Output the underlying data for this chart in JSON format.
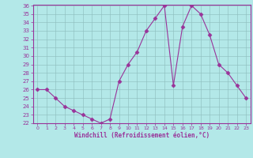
{
  "x": [
    0,
    1,
    2,
    3,
    4,
    5,
    6,
    7,
    8,
    9,
    10,
    11,
    12,
    13,
    14,
    15,
    16,
    17,
    18,
    19,
    20,
    21,
    22,
    23
  ],
  "y": [
    26,
    26,
    25,
    24,
    23.5,
    23,
    22.5,
    22,
    22.5,
    27,
    29,
    30.5,
    33,
    34.5,
    36,
    26.5,
    33.5,
    36,
    35,
    32.5,
    29,
    28,
    26.5,
    25
  ],
  "line_color": "#993399",
  "marker": "D",
  "marker_size": 2.5,
  "bg_color": "#b3e8e8",
  "grid_color": "#8fbfbf",
  "xlabel": "Windchill (Refroidissement éolien,°C)",
  "ylabel": "",
  "ylim": [
    22,
    36
  ],
  "xlim": [
    -0.5,
    23.5
  ],
  "yticks": [
    22,
    23,
    24,
    25,
    26,
    27,
    28,
    29,
    30,
    31,
    32,
    33,
    34,
    35,
    36
  ],
  "xticks": [
    0,
    1,
    2,
    3,
    4,
    5,
    6,
    7,
    8,
    9,
    10,
    11,
    12,
    13,
    14,
    15,
    16,
    17,
    18,
    19,
    20,
    21,
    22,
    23
  ]
}
